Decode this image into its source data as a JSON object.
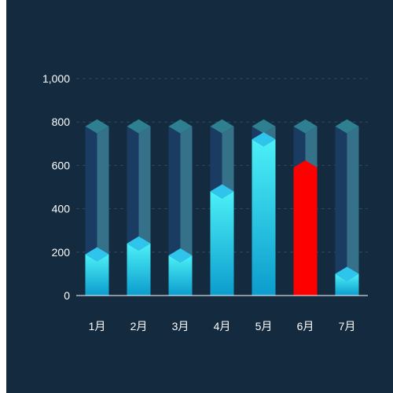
{
  "chart_data": {
    "type": "bar",
    "title": "",
    "xlabel": "",
    "ylabel": "",
    "categories": [
      "1月",
      "2月",
      "3月",
      "4月",
      "5月",
      "6月",
      "7月"
    ],
    "values": [
      190,
      240,
      185,
      480,
      720,
      590,
      100
    ],
    "background_track_value": 780,
    "ylim": [
      0,
      1000
    ],
    "yticks": [
      0,
      200,
      400,
      600,
      800,
      1000
    ],
    "ytick_labels": [
      "0",
      "200",
      "400",
      "600",
      "800",
      "1,000"
    ],
    "grid": "horizontal-dashed",
    "highlight_index": 5,
    "colors": {
      "background": "#132a3f",
      "bar_top": "#4cf0f7",
      "bar_bottom": "#0c9ccd",
      "bar_cap": "#2fc4ec",
      "highlight": "#ff0000",
      "track_left": "#1b3c62",
      "track_right": "#36718a",
      "track_cap": "#2e7f90",
      "grid": "#2c4b60",
      "axis": "#ffffff"
    }
  }
}
